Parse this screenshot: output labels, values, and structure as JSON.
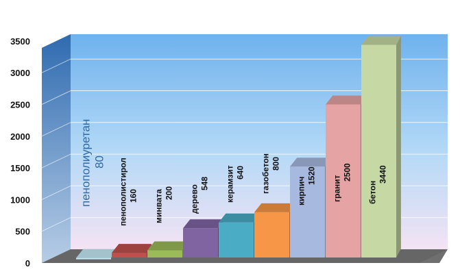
{
  "chart_data": {
    "type": "bar",
    "style": "3d",
    "categories": [
      "пенополиуретан",
      "пенополистирол",
      "минвата",
      "дерево",
      "керамзит",
      "газобетон",
      "кирпич",
      "гранит",
      "бетон"
    ],
    "values": [
      80,
      160,
      200,
      548,
      640,
      800,
      1520,
      2500,
      3440
    ],
    "value_labels": [
      "80",
      "160",
      "200",
      "548",
      "640",
      "800",
      "1520",
      "2500",
      "3440"
    ],
    "colors": [
      "#c8ecf8",
      "#c0504d",
      "#9bbb59",
      "#8064a2",
      "#4bacc6",
      "#f79646",
      "#a7b9de",
      "#e6a3a3",
      "#c6d9a4"
    ],
    "ylim": [
      0,
      3500
    ],
    "yticks": [
      "0",
      "500",
      "1000",
      "1500",
      "2000",
      "2500",
      "3000",
      "3500"
    ],
    "title": "",
    "xlabel": "",
    "ylabel": "",
    "grid": true,
    "legend": "none"
  }
}
